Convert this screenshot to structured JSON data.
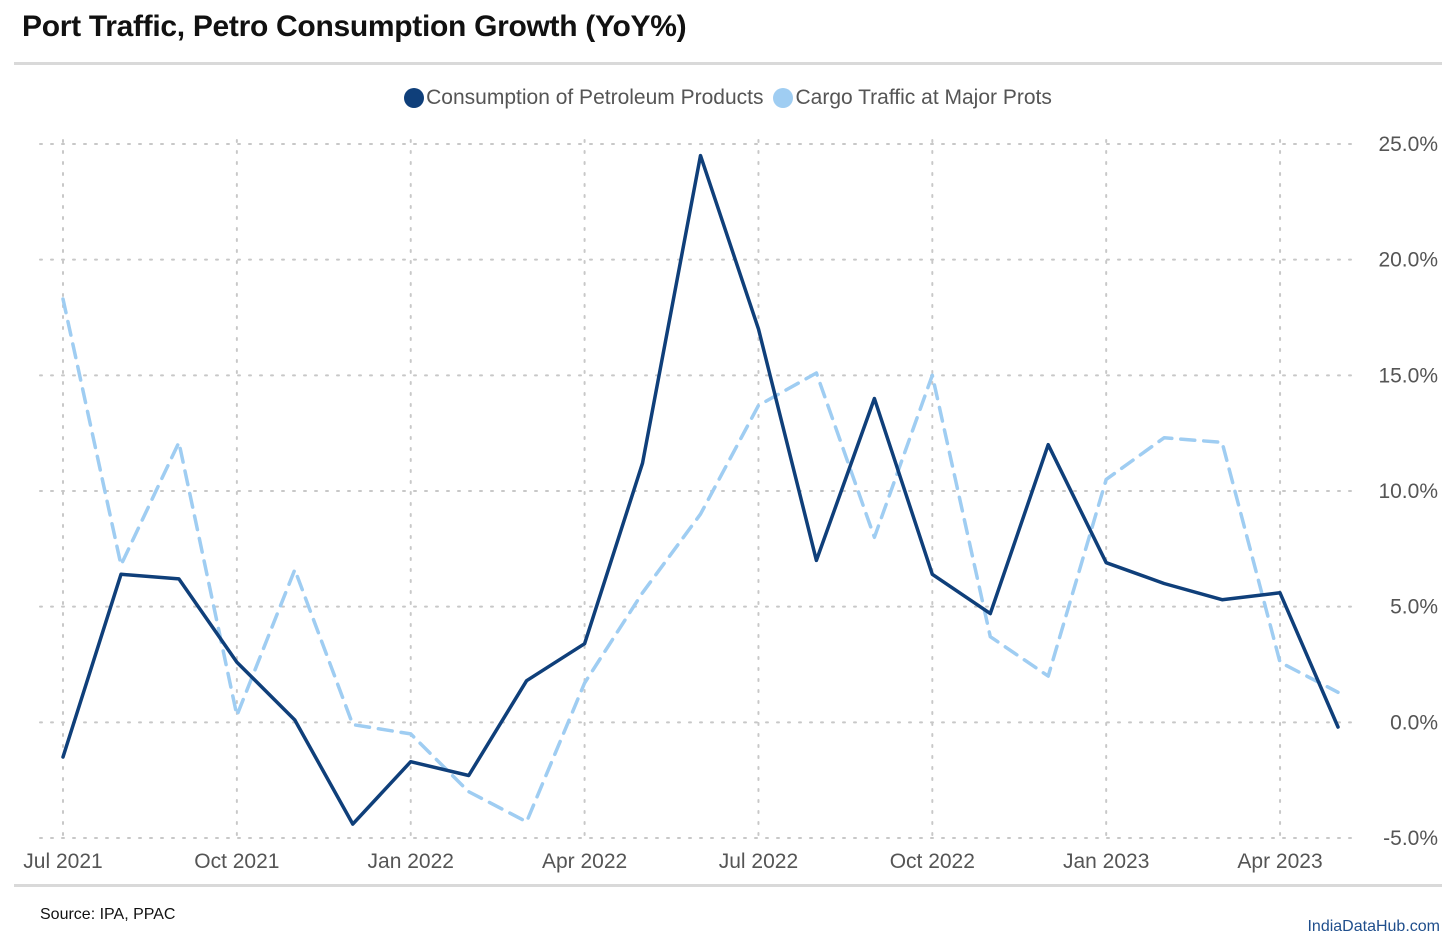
{
  "title": "Port Traffic, Petro Consumption Growth (YoY%)",
  "source": "Source: IPA, PPAC",
  "brand": "IndiaDataHub.com",
  "colors": {
    "petroleum": "#0f3f7a",
    "cargo": "#9fcdf2",
    "grid": "#c8c8c8",
    "axis_text": "#555555"
  },
  "chart_data": {
    "type": "line",
    "title": "Port Traffic, Petro Consumption Growth (YoY%)",
    "x": [
      "Jul 2021",
      "Aug 2021",
      "Sep 2021",
      "Oct 2021",
      "Nov 2021",
      "Dec 2021",
      "Jan 2022",
      "Feb 2022",
      "Mar 2022",
      "Apr 2022",
      "May 2022",
      "Jun 2022",
      "Jul 2022",
      "Aug 2022",
      "Sep 2022",
      "Oct 2022",
      "Nov 2022",
      "Dec 2022",
      "Jan 2023",
      "Feb 2023",
      "Mar 2023",
      "Apr 2023",
      "May 2023"
    ],
    "x_tick_labels": [
      "Jul 2021",
      "Oct 2021",
      "Jan 2022",
      "Apr 2022",
      "Jul 2022",
      "Oct 2022",
      "Jan 2023",
      "Apr 2023"
    ],
    "x_tick_indices": [
      0,
      3,
      6,
      9,
      12,
      15,
      18,
      21
    ],
    "y_ticks": [
      -5,
      0,
      5,
      10,
      15,
      20,
      25
    ],
    "y_tick_labels": [
      "-5.0%",
      "0.0%",
      "5.0%",
      "10.0%",
      "15.0%",
      "20.0%",
      "25.0%"
    ],
    "ylim": [
      -5,
      25
    ],
    "xlabel": "",
    "ylabel": "",
    "y_axis_side": "right",
    "grid": true,
    "legend_position": "top-center",
    "series": [
      {
        "name": "Consumption of Petroleum Products",
        "style": "solid",
        "color": "#0f3f7a",
        "values": [
          -1.5,
          6.4,
          6.2,
          2.6,
          0.1,
          -4.4,
          -1.7,
          -2.3,
          1.8,
          3.4,
          11.2,
          24.5,
          17.0,
          7.0,
          14.0,
          6.4,
          4.7,
          12.0,
          6.9,
          6.0,
          5.3,
          5.6,
          -0.2
        ]
      },
      {
        "name": "Cargo Traffic at Major Prots",
        "style": "dashed",
        "color": "#9fcdf2",
        "values": [
          18.3,
          6.8,
          12.1,
          0.3,
          6.6,
          -0.1,
          -0.5,
          -3.0,
          -4.3,
          1.7,
          5.6,
          9.0,
          13.7,
          15.1,
          8.0,
          15.0,
          3.7,
          2.0,
          10.5,
          12.3,
          12.1,
          2.6,
          1.3
        ]
      }
    ]
  }
}
